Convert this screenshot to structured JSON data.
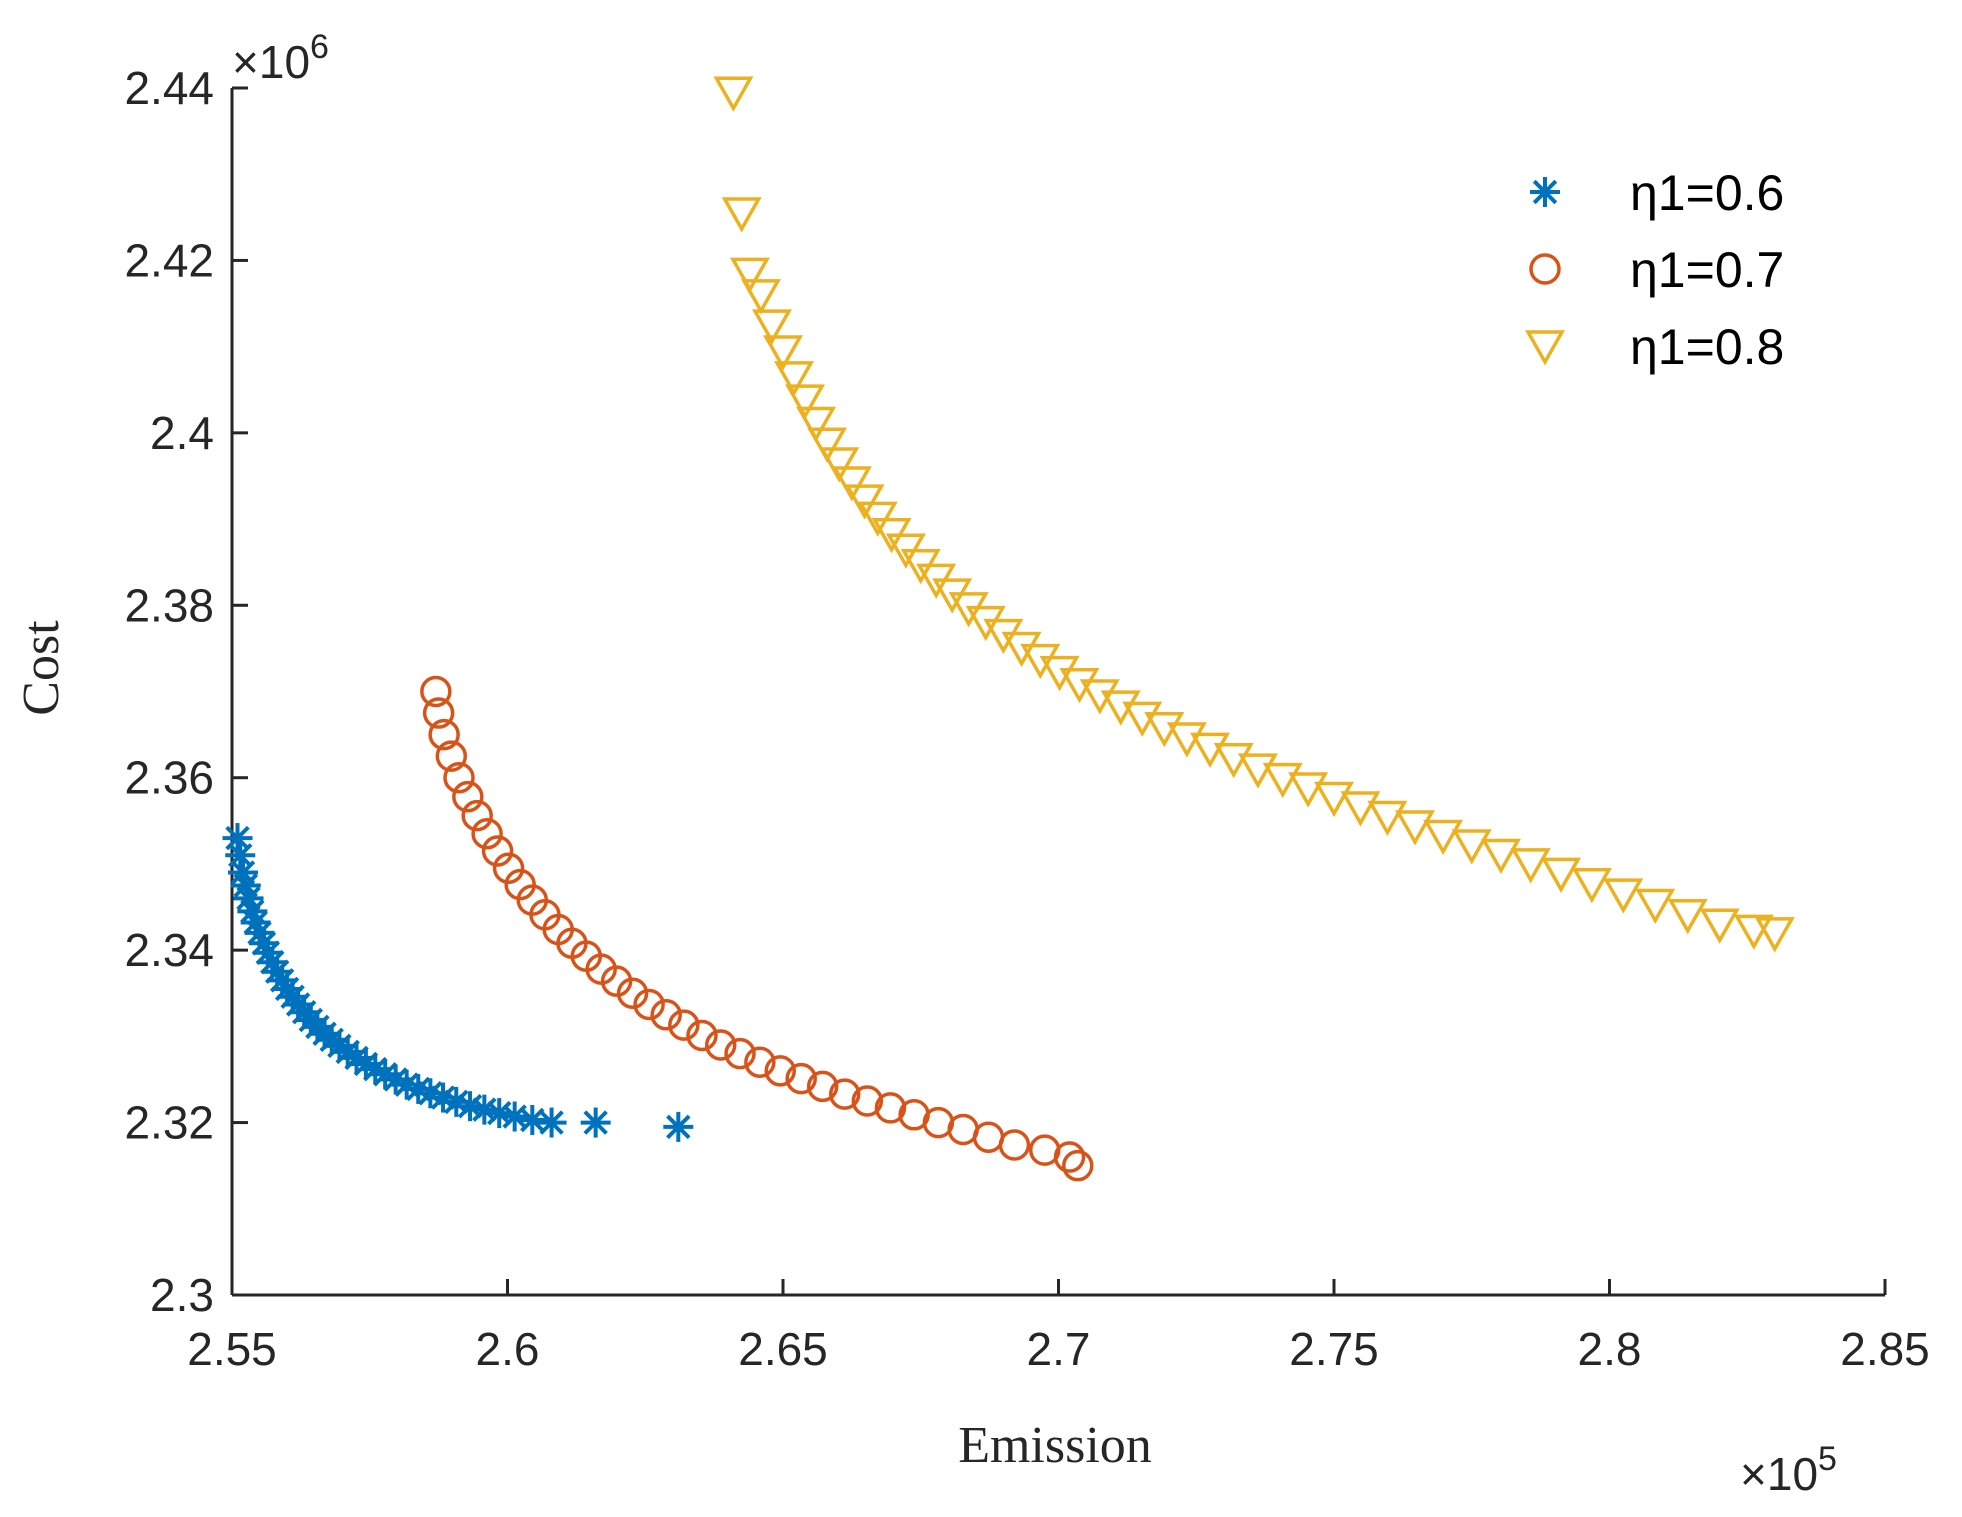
{
  "chart_data": {
    "type": "scatter",
    "xlabel": "Emission",
    "ylabel": "Cost",
    "x_exponent": {
      "prefix": "×10",
      "power": "5"
    },
    "y_exponent": {
      "prefix": "×10",
      "power": "6"
    },
    "xlim": [
      2.55,
      2.85
    ],
    "ylim": [
      2.3,
      2.44
    ],
    "x_ticks": [
      2.55,
      2.6,
      2.65,
      2.7,
      2.75,
      2.8,
      2.85
    ],
    "x_tick_labels": [
      "2.55",
      "2.6",
      "2.65",
      "2.7",
      "2.75",
      "2.8",
      "2.85"
    ],
    "y_ticks": [
      2.3,
      2.32,
      2.34,
      2.36,
      2.38,
      2.4,
      2.42,
      2.44
    ],
    "y_tick_labels": [
      "2.3",
      "2.32",
      "2.34",
      "2.36",
      "2.38",
      "2.4",
      "2.42",
      "2.44"
    ],
    "legend_position": "top-right",
    "series": [
      {
        "name": "η1=0.6",
        "marker": "asterisk",
        "color": "#0072BD",
        "points": [
          [
            2.551,
            2.353
          ],
          [
            2.5515,
            2.351
          ],
          [
            2.552,
            2.349
          ],
          [
            2.5525,
            2.3475
          ],
          [
            2.553,
            2.346
          ],
          [
            2.5537,
            2.3445
          ],
          [
            2.5543,
            2.3432
          ],
          [
            2.555,
            2.342
          ],
          [
            2.5558,
            2.3408
          ],
          [
            2.5565,
            2.3397
          ],
          [
            2.5573,
            2.3386
          ],
          [
            2.5582,
            2.3375
          ],
          [
            2.5591,
            2.3365
          ],
          [
            2.56,
            2.3355
          ],
          [
            2.561,
            2.3346
          ],
          [
            2.562,
            2.3337
          ],
          [
            2.5631,
            2.3328
          ],
          [
            2.5643,
            2.3319
          ],
          [
            2.5655,
            2.3311
          ],
          [
            2.5668,
            2.3303
          ],
          [
            2.5681,
            2.3296
          ],
          [
            2.5695,
            2.3289
          ],
          [
            2.571,
            2.3282
          ],
          [
            2.5726,
            2.3275
          ],
          [
            2.5743,
            2.3268
          ],
          [
            2.576,
            2.3262
          ],
          [
            2.5778,
            2.3256
          ],
          [
            2.5797,
            2.325
          ],
          [
            2.5817,
            2.3244
          ],
          [
            2.5838,
            2.3239
          ],
          [
            2.586,
            2.3234
          ],
          [
            2.5883,
            2.3229
          ],
          [
            2.5907,
            2.3224
          ],
          [
            2.5932,
            2.3219
          ],
          [
            2.5958,
            2.3215
          ],
          [
            2.5985,
            2.3211
          ],
          [
            2.6013,
            2.3207
          ],
          [
            2.6045,
            2.3203
          ],
          [
            2.608,
            2.32
          ],
          [
            2.616,
            2.32
          ],
          [
            2.631,
            2.3195
          ]
        ]
      },
      {
        "name": "η1=0.7",
        "marker": "circle",
        "color": "#D95319",
        "points": [
          [
            2.587,
            2.37
          ],
          [
            2.5875,
            2.3675
          ],
          [
            2.5885,
            2.365
          ],
          [
            2.5898,
            2.3625
          ],
          [
            2.5912,
            2.36
          ],
          [
            2.5928,
            2.3578
          ],
          [
            2.5945,
            2.3556
          ],
          [
            2.5963,
            2.3535
          ],
          [
            2.5982,
            2.3515
          ],
          [
            2.6002,
            2.3495
          ],
          [
            2.6023,
            2.3476
          ],
          [
            2.6045,
            2.3458
          ],
          [
            2.6068,
            2.3441
          ],
          [
            2.6092,
            2.3424
          ],
          [
            2.6117,
            2.3408
          ],
          [
            2.6143,
            2.3393
          ],
          [
            2.617,
            2.3378
          ],
          [
            2.6198,
            2.3364
          ],
          [
            2.6227,
            2.335
          ],
          [
            2.6257,
            2.3337
          ],
          [
            2.6288,
            2.3325
          ],
          [
            2.632,
            2.3313
          ],
          [
            2.6353,
            2.3301
          ],
          [
            2.6387,
            2.329
          ],
          [
            2.6422,
            2.328
          ],
          [
            2.6458,
            2.327
          ],
          [
            2.6495,
            2.326
          ],
          [
            2.6533,
            2.3251
          ],
          [
            2.6572,
            2.3242
          ],
          [
            2.6612,
            2.3233
          ],
          [
            2.6653,
            2.3225
          ],
          [
            2.6695,
            2.3217
          ],
          [
            2.6738,
            2.3209
          ],
          [
            2.6782,
            2.32
          ],
          [
            2.6827,
            2.3192
          ],
          [
            2.6873,
            2.3183
          ],
          [
            2.692,
            2.3174
          ],
          [
            2.6975,
            2.3168
          ],
          [
            2.702,
            2.316
          ],
          [
            2.7035,
            2.315
          ]
        ]
      },
      {
        "name": "η1=0.8",
        "marker": "triangle-down",
        "color": "#EDB120",
        "points": [
          [
            2.641,
            2.4395
          ],
          [
            2.6425,
            2.4255
          ],
          [
            2.644,
            2.4185
          ],
          [
            2.646,
            2.416
          ],
          [
            2.648,
            2.4125
          ],
          [
            2.65,
            2.4095
          ],
          [
            2.652,
            2.4065
          ],
          [
            2.654,
            2.4038
          ],
          [
            2.656,
            2.4012
          ],
          [
            2.658,
            2.3988
          ],
          [
            2.6602,
            2.3965
          ],
          [
            2.6625,
            2.3943
          ],
          [
            2.6648,
            2.3922
          ],
          [
            2.6672,
            2.3902
          ],
          [
            2.6697,
            2.3883
          ],
          [
            2.6723,
            2.3865
          ],
          [
            2.675,
            2.3847
          ],
          [
            2.6778,
            2.383
          ],
          [
            2.6807,
            2.3813
          ],
          [
            2.6837,
            2.3797
          ],
          [
            2.6868,
            2.3781
          ],
          [
            2.69,
            2.3766
          ],
          [
            2.6933,
            2.3751
          ],
          [
            2.6967,
            2.3737
          ],
          [
            2.7002,
            2.3723
          ],
          [
            2.7038,
            2.3709
          ],
          [
            2.7075,
            2.3696
          ],
          [
            2.7113,
            2.3683
          ],
          [
            2.7152,
            2.367
          ],
          [
            2.7192,
            2.3658
          ],
          [
            2.7233,
            2.3646
          ],
          [
            2.7275,
            2.3634
          ],
          [
            2.7318,
            2.3622
          ],
          [
            2.7362,
            2.361
          ],
          [
            2.7407,
            2.3599
          ],
          [
            2.7453,
            2.3588
          ],
          [
            2.75,
            2.3577
          ],
          [
            2.7548,
            2.3566
          ],
          [
            2.7597,
            2.3555
          ],
          [
            2.7647,
            2.3544
          ],
          [
            2.7698,
            2.3533
          ],
          [
            2.775,
            2.3522
          ],
          [
            2.7803,
            2.3511
          ],
          [
            2.7857,
            2.35
          ],
          [
            2.7912,
            2.3489
          ],
          [
            2.7968,
            2.3477
          ],
          [
            2.8025,
            2.3465
          ],
          [
            2.8083,
            2.3453
          ],
          [
            2.8142,
            2.3441
          ],
          [
            2.82,
            2.343
          ],
          [
            2.8262,
            2.3423
          ],
          [
            2.83,
            2.342
          ]
        ]
      }
    ]
  }
}
